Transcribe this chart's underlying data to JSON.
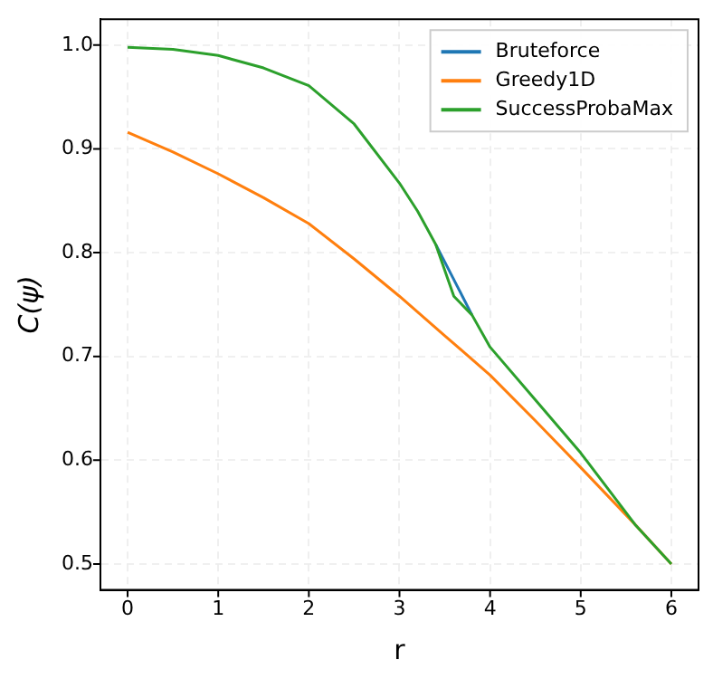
{
  "chart_data": {
    "type": "line",
    "xlabel": "r",
    "ylabel": "C(ψ)",
    "xlim": [
      -0.3,
      6.3
    ],
    "xticks": [
      0,
      1,
      2,
      3,
      4,
      5,
      6
    ],
    "ylim": [
      0.475,
      1.025
    ],
    "yticks": [
      0.5,
      0.6,
      0.7,
      0.8,
      0.9,
      {
        "value": 1,
        "label": "1.0"
      }
    ],
    "grid": true,
    "legend": "top right",
    "marker": "none",
    "line_style": "solid",
    "series": [
      {
        "name": "Bruteforce",
        "color": "#1f77b4",
        "x": [
          3.4,
          3.8
        ],
        "values": [
          0.808,
          0.74
        ]
      },
      {
        "name": "Greedy1D",
        "color": "#ff7f0e",
        "x": [
          0,
          0.5,
          1,
          1.5,
          2,
          2.5,
          3,
          3.5,
          4,
          4.5,
          5,
          5.6,
          6
        ],
        "values": [
          0.916,
          0.897,
          0.876,
          0.853,
          0.828,
          0.794,
          0.758,
          0.72,
          0.682,
          0.638,
          0.593,
          0.538,
          0.5
        ]
      },
      {
        "name": "SuccessProbaMax",
        "color": "#2ca02c",
        "x": [
          0,
          0.5,
          1,
          1.5,
          2,
          2.5,
          3,
          3.2,
          3.4,
          3.6,
          3.8,
          4,
          4.5,
          5,
          5.6,
          6
        ],
        "values": [
          0.998,
          0.996,
          0.99,
          0.978,
          0.961,
          0.924,
          0.867,
          0.84,
          0.808,
          0.758,
          0.74,
          0.709,
          0.658,
          0.607,
          0.538,
          0.5
        ]
      }
    ]
  }
}
